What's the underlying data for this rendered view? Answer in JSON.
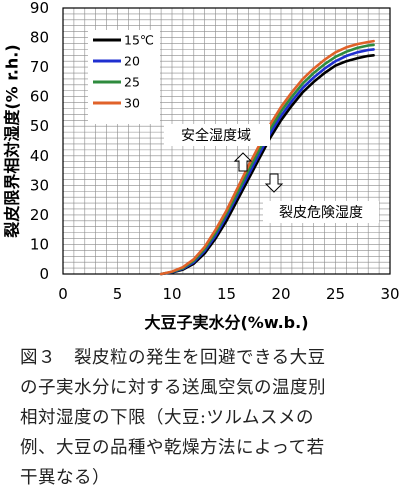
{
  "chart_data": {
    "type": "line",
    "title": "",
    "xlabel": "大豆子実水分(%w.b.)",
    "ylabel": "裂皮限界相対湿度(% r.h.)",
    "xlim": [
      0,
      30
    ],
    "ylim": [
      0,
      90
    ],
    "xticks": [
      "0",
      "5",
      "10",
      "15",
      "20",
      "25",
      "30"
    ],
    "yticks": [
      "0",
      "10",
      "20",
      "30",
      "40",
      "50",
      "60",
      "70",
      "80",
      "90"
    ],
    "grid": true,
    "legend_position": "top-left",
    "series": [
      {
        "name": "15℃",
        "color": "#000000",
        "x": [
          9,
          10,
          11,
          12,
          13,
          14,
          15,
          16,
          17,
          18,
          19,
          20,
          21,
          22,
          23,
          24,
          25,
          26,
          27,
          28,
          28.5
        ],
        "y": [
          0,
          0.5,
          1.5,
          3.5,
          7,
          12,
          18,
          25,
          32,
          39,
          46,
          52,
          57,
          61.5,
          65,
          68,
          70.5,
          72,
          73,
          73.8,
          74
        ]
      },
      {
        "name": "20",
        "color": "#1f2fd0",
        "x": [
          9,
          10,
          11,
          12,
          13,
          14,
          15,
          16,
          17,
          18,
          19,
          20,
          21,
          22,
          23,
          24,
          25,
          26,
          27,
          28,
          28.5
        ],
        "y": [
          0,
          0.6,
          1.8,
          4,
          7.8,
          13,
          19.5,
          26.5,
          33.5,
          40.5,
          47.5,
          53.5,
          58.5,
          63,
          66.5,
          69.5,
          72,
          73.8,
          75,
          75.8,
          76
        ]
      },
      {
        "name": "25",
        "color": "#2e8b3e",
        "x": [
          9,
          10,
          11,
          12,
          13,
          14,
          15,
          16,
          17,
          18,
          19,
          20,
          21,
          22,
          23,
          24,
          25,
          26,
          27,
          28,
          28.5
        ],
        "y": [
          0,
          0.7,
          2,
          4.5,
          8.5,
          14,
          20.5,
          27.5,
          35,
          42,
          49,
          55,
          60,
          64.5,
          68,
          71,
          73.5,
          75.2,
          76.5,
          77.3,
          77.5
        ]
      },
      {
        "name": "30",
        "color": "#e0622a",
        "x": [
          9,
          10,
          11,
          12,
          13,
          14,
          15,
          16,
          17,
          18,
          19,
          20,
          21,
          22,
          23,
          24,
          25,
          26,
          27,
          28,
          28.5
        ],
        "y": [
          0,
          0.8,
          2.3,
          5,
          9.2,
          15,
          21.5,
          29,
          36.5,
          43.5,
          50.5,
          56.5,
          61.5,
          66,
          69.5,
          72.5,
          75,
          76.7,
          77.8,
          78.5,
          78.8
        ]
      }
    ],
    "annotations": [
      {
        "text": "安全湿度域",
        "arrow": "up"
      },
      {
        "text": "裂皮危険湿度",
        "arrow": "down"
      }
    ]
  },
  "caption": {
    "lines": [
      "図３　裂皮粒の発生を回避できる大豆",
      "の子実水分に対する送風空気の温度別",
      "相対湿度の下限（大豆:ツルムスメの",
      "例、大豆の品種や乾燥方法によって若",
      "干異なる）"
    ]
  }
}
